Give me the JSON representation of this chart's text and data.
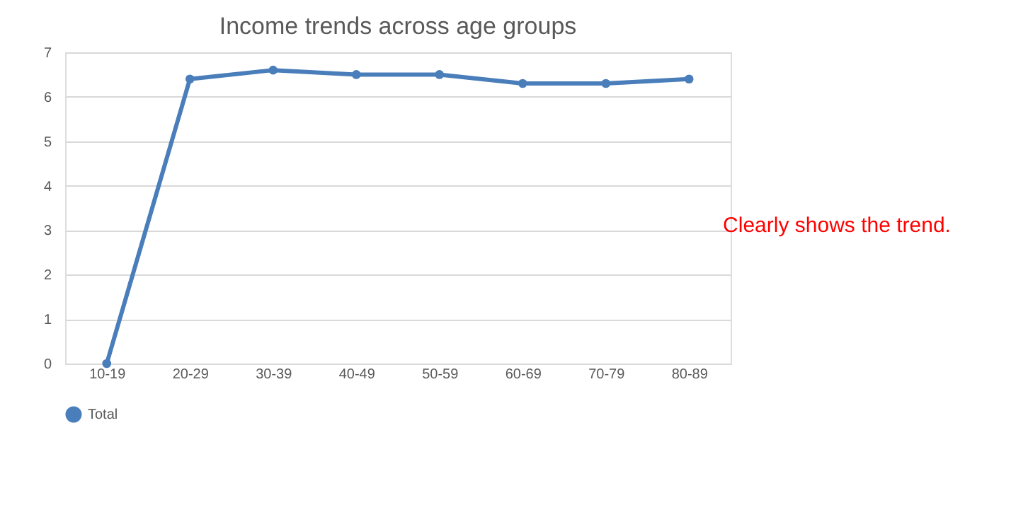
{
  "chart_data": {
    "type": "line",
    "title": "Income trends across age groups",
    "categories": [
      "10-19",
      "20-29",
      "30-39",
      "40-49",
      "50-59",
      "60-69",
      "70-79",
      "80-89"
    ],
    "series": [
      {
        "name": "Total",
        "color": "#4a7ebb",
        "values": [
          0,
          6.4,
          6.6,
          6.5,
          6.5,
          6.3,
          6.3,
          6.4
        ]
      }
    ],
    "ylim": [
      0,
      7
    ],
    "yticks": [
      0,
      1,
      2,
      3,
      4,
      5,
      6,
      7
    ],
    "grid": "y",
    "legend": "bottom",
    "marker": "circle",
    "line_style": "solid",
    "annotations": [
      "Clearly shows the trend."
    ]
  }
}
